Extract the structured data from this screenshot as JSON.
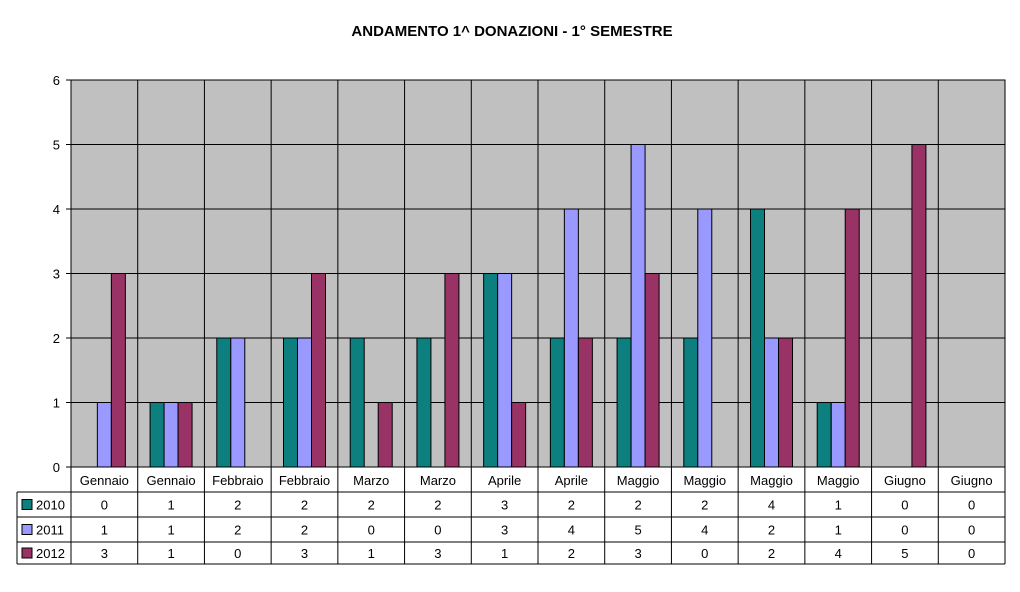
{
  "chart_data": {
    "type": "bar",
    "title": "ANDAMENTO 1^ DONAZIONI - 1° SEMESTRE",
    "categories": [
      "Gennaio",
      "Gennaio",
      "Febbraio",
      "Febbraio",
      "Marzo",
      "Marzo",
      "Aprile",
      "Aprile",
      "Maggio",
      "Maggio",
      "Maggio",
      "Maggio",
      "Giugno",
      "Giugno"
    ],
    "series": [
      {
        "name": "2010",
        "color": "#0e7f7f",
        "values": [
          0,
          1,
          2,
          2,
          2,
          2,
          3,
          2,
          2,
          2,
          4,
          1,
          0,
          0
        ]
      },
      {
        "name": "2011",
        "color": "#9999ff",
        "values": [
          1,
          1,
          2,
          2,
          0,
          0,
          3,
          4,
          5,
          4,
          2,
          1,
          0,
          0
        ]
      },
      {
        "name": "2012",
        "color": "#993366",
        "values": [
          3,
          1,
          0,
          3,
          1,
          3,
          1,
          2,
          3,
          0,
          2,
          4,
          5,
          0
        ]
      }
    ],
    "y_ticks": [
      "0",
      "1",
      "2",
      "3",
      "4",
      "5",
      "6"
    ],
    "ylim": [
      0,
      6
    ],
    "plot_background": "#c0c0c0",
    "grid": true,
    "legend": "data-table-left",
    "data_table": true
  }
}
